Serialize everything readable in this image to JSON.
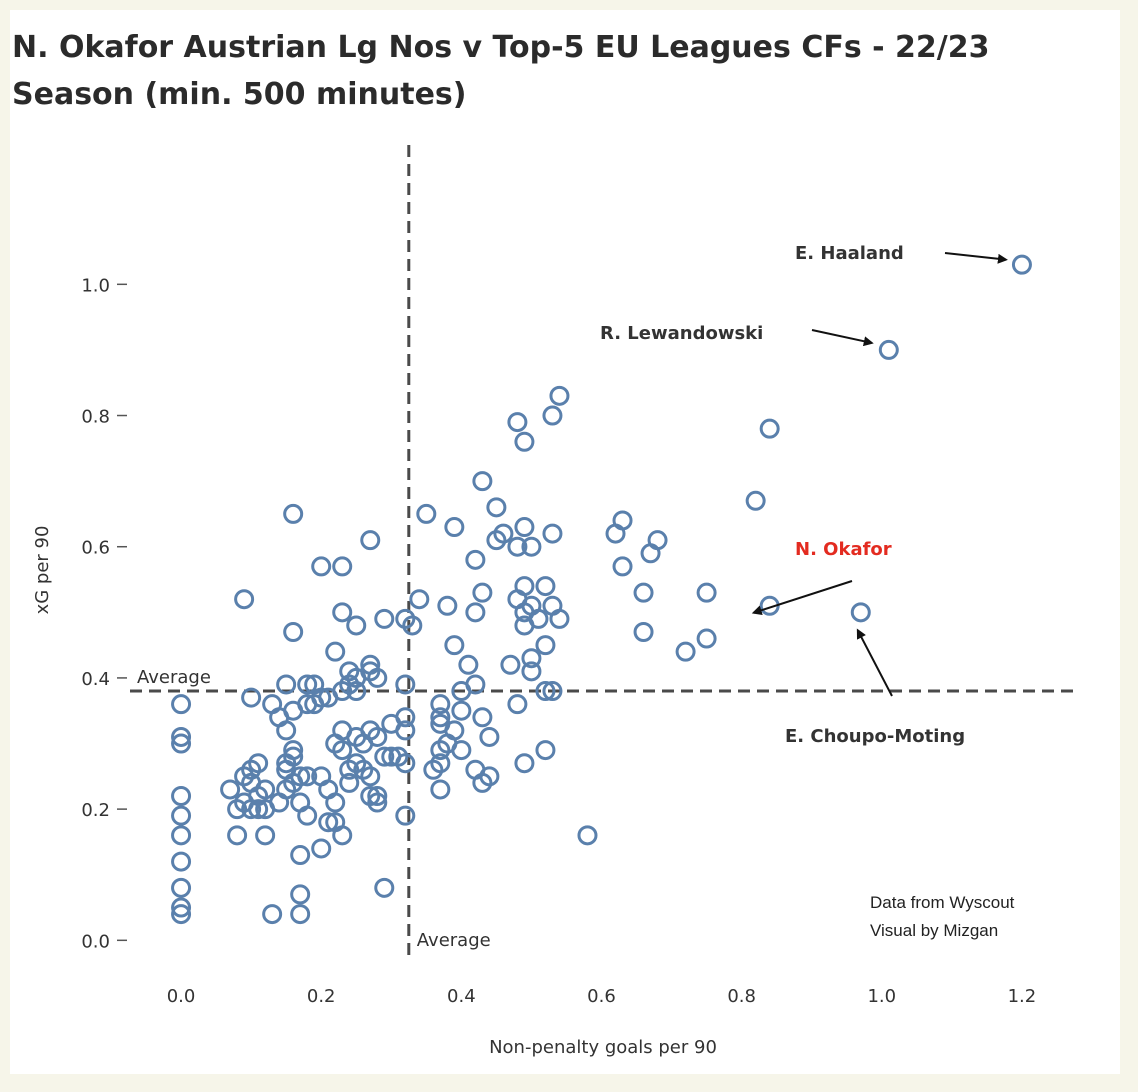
{
  "title": "N. Okafor Austrian Lg Nos v Top-5 EU Leagues CFs - 22/23 Season (min. 500 minutes)",
  "credits": [
    "Data from Wyscout",
    "Visual by Mizgan"
  ],
  "colors": {
    "point": "#5a80ac",
    "highlight": "#e32b20",
    "background": "#f6f5e9",
    "text": "#333333"
  },
  "chart_data": {
    "type": "scatter",
    "title": "N. Okafor Austrian Lg Nos v Top-5 EU Leagues CFs - 22/23 Season (min. 500 minutes)",
    "xlabel": "Non-penalty goals per 90",
    "ylabel": "xG per 90",
    "xlim": [
      -0.08,
      1.28
    ],
    "ylim": [
      -0.03,
      1.22
    ],
    "xticks": [
      "0.0",
      "0.2",
      "0.4",
      "0.6",
      "0.8",
      "1.0",
      "1.2"
    ],
    "yticks": [
      "0.0",
      "0.2",
      "0.4",
      "0.6",
      "0.8",
      "1.0"
    ],
    "grid": false,
    "reference_lines": [
      {
        "axis": "x",
        "value": 0.325,
        "label": "Average"
      },
      {
        "axis": "y",
        "value": 0.38,
        "label": "Average"
      }
    ],
    "annotations": [
      {
        "text": "E. Haaland",
        "x": 1.2,
        "y": 1.03,
        "highlight": false
      },
      {
        "text": "R. Lewandowski",
        "x": 1.01,
        "y": 0.9,
        "highlight": false
      },
      {
        "text": "N. Okafor",
        "x": 0.84,
        "y": 0.51,
        "highlight": true
      },
      {
        "text": "E. Choupo-Moting",
        "x": 0.97,
        "y": 0.5,
        "highlight": false
      }
    ],
    "points": [
      [
        1.2,
        1.03
      ],
      [
        1.01,
        0.9
      ],
      [
        0.84,
        0.78
      ],
      [
        0.82,
        0.67
      ],
      [
        0.84,
        0.51
      ],
      [
        0.97,
        0.5
      ],
      [
        0.75,
        0.53
      ],
      [
        0.75,
        0.46
      ],
      [
        0.72,
        0.44
      ],
      [
        0.68,
        0.61
      ],
      [
        0.67,
        0.59
      ],
      [
        0.66,
        0.53
      ],
      [
        0.66,
        0.47
      ],
      [
        0.63,
        0.64
      ],
      [
        0.62,
        0.62
      ],
      [
        0.63,
        0.57
      ],
      [
        0.58,
        0.16
      ],
      [
        0.54,
        0.83
      ],
      [
        0.53,
        0.8
      ],
      [
        0.48,
        0.79
      ],
      [
        0.49,
        0.76
      ],
      [
        0.43,
        0.7
      ],
      [
        0.45,
        0.66
      ],
      [
        0.53,
        0.62
      ],
      [
        0.46,
        0.62
      ],
      [
        0.45,
        0.61
      ],
      [
        0.48,
        0.6
      ],
      [
        0.5,
        0.6
      ],
      [
        0.49,
        0.63
      ],
      [
        0.42,
        0.58
      ],
      [
        0.49,
        0.54
      ],
      [
        0.52,
        0.54
      ],
      [
        0.43,
        0.53
      ],
      [
        0.48,
        0.52
      ],
      [
        0.53,
        0.51
      ],
      [
        0.5,
        0.51
      ],
      [
        0.54,
        0.49
      ],
      [
        0.49,
        0.5
      ],
      [
        0.51,
        0.49
      ],
      [
        0.42,
        0.5
      ],
      [
        0.49,
        0.48
      ],
      [
        0.52,
        0.45
      ],
      [
        0.5,
        0.43
      ],
      [
        0.47,
        0.42
      ],
      [
        0.5,
        0.41
      ],
      [
        0.52,
        0.38
      ],
      [
        0.53,
        0.38
      ],
      [
        0.42,
        0.39
      ],
      [
        0.4,
        0.38
      ],
      [
        0.48,
        0.36
      ],
      [
        0.39,
        0.45
      ],
      [
        0.41,
        0.42
      ],
      [
        0.38,
        0.51
      ],
      [
        0.35,
        0.65
      ],
      [
        0.39,
        0.63
      ],
      [
        0.34,
        0.52
      ],
      [
        0.37,
        0.36
      ],
      [
        0.37,
        0.34
      ],
      [
        0.37,
        0.33
      ],
      [
        0.39,
        0.32
      ],
      [
        0.4,
        0.35
      ],
      [
        0.38,
        0.3
      ],
      [
        0.37,
        0.29
      ],
      [
        0.4,
        0.29
      ],
      [
        0.37,
        0.27
      ],
      [
        0.43,
        0.34
      ],
      [
        0.44,
        0.31
      ],
      [
        0.43,
        0.24
      ],
      [
        0.44,
        0.25
      ],
      [
        0.42,
        0.26
      ],
      [
        0.36,
        0.26
      ],
      [
        0.37,
        0.23
      ],
      [
        0.49,
        0.27
      ],
      [
        0.52,
        0.29
      ],
      [
        0.33,
        0.48
      ],
      [
        0.32,
        0.49
      ],
      [
        0.29,
        0.49
      ],
      [
        0.27,
        0.61
      ],
      [
        0.23,
        0.57
      ],
      [
        0.2,
        0.57
      ],
      [
        0.16,
        0.65
      ],
      [
        0.09,
        0.52
      ],
      [
        0.16,
        0.47
      ],
      [
        0.23,
        0.5
      ],
      [
        0.25,
        0.48
      ],
      [
        0.22,
        0.44
      ],
      [
        0.24,
        0.41
      ],
      [
        0.25,
        0.4
      ],
      [
        0.27,
        0.42
      ],
      [
        0.27,
        0.41
      ],
      [
        0.28,
        0.4
      ],
      [
        0.24,
        0.39
      ],
      [
        0.23,
        0.38
      ],
      [
        0.25,
        0.38
      ],
      [
        0.32,
        0.39
      ],
      [
        0.2,
        0.37
      ],
      [
        0.21,
        0.37
      ],
      [
        0.18,
        0.39
      ],
      [
        0.19,
        0.39
      ],
      [
        0.15,
        0.39
      ],
      [
        0.18,
        0.36
      ],
      [
        0.19,
        0.36
      ],
      [
        0.16,
        0.35
      ],
      [
        0.14,
        0.34
      ],
      [
        0.13,
        0.36
      ],
      [
        0.15,
        0.32
      ],
      [
        0.16,
        0.29
      ],
      [
        0.1,
        0.37
      ],
      [
        0.0,
        0.36
      ],
      [
        0.0,
        0.31
      ],
      [
        0.0,
        0.3
      ],
      [
        0.32,
        0.34
      ],
      [
        0.32,
        0.32
      ],
      [
        0.3,
        0.33
      ],
      [
        0.27,
        0.32
      ],
      [
        0.28,
        0.31
      ],
      [
        0.26,
        0.3
      ],
      [
        0.25,
        0.31
      ],
      [
        0.23,
        0.32
      ],
      [
        0.22,
        0.3
      ],
      [
        0.23,
        0.29
      ],
      [
        0.3,
        0.28
      ],
      [
        0.31,
        0.28
      ],
      [
        0.32,
        0.27
      ],
      [
        0.29,
        0.28
      ],
      [
        0.25,
        0.27
      ],
      [
        0.24,
        0.26
      ],
      [
        0.26,
        0.26
      ],
      [
        0.27,
        0.25
      ],
      [
        0.24,
        0.24
      ],
      [
        0.27,
        0.22
      ],
      [
        0.28,
        0.22
      ],
      [
        0.28,
        0.21
      ],
      [
        0.2,
        0.25
      ],
      [
        0.21,
        0.23
      ],
      [
        0.18,
        0.25
      ],
      [
        0.17,
        0.25
      ],
      [
        0.16,
        0.24
      ],
      [
        0.15,
        0.23
      ],
      [
        0.15,
        0.26
      ],
      [
        0.15,
        0.27
      ],
      [
        0.16,
        0.28
      ],
      [
        0.14,
        0.21
      ],
      [
        0.17,
        0.21
      ],
      [
        0.22,
        0.21
      ],
      [
        0.18,
        0.19
      ],
      [
        0.21,
        0.18
      ],
      [
        0.22,
        0.18
      ],
      [
        0.23,
        0.16
      ],
      [
        0.2,
        0.14
      ],
      [
        0.17,
        0.13
      ],
      [
        0.17,
        0.07
      ],
      [
        0.17,
        0.04
      ],
      [
        0.13,
        0.04
      ],
      [
        0.29,
        0.08
      ],
      [
        0.32,
        0.19
      ],
      [
        0.12,
        0.16
      ],
      [
        0.08,
        0.16
      ],
      [
        0.1,
        0.26
      ],
      [
        0.11,
        0.27
      ],
      [
        0.09,
        0.25
      ],
      [
        0.1,
        0.24
      ],
      [
        0.11,
        0.22
      ],
      [
        0.12,
        0.23
      ],
      [
        0.07,
        0.23
      ],
      [
        0.08,
        0.2
      ],
      [
        0.1,
        0.2
      ],
      [
        0.11,
        0.2
      ],
      [
        0.12,
        0.2
      ],
      [
        0.09,
        0.21
      ],
      [
        0.0,
        0.22
      ],
      [
        0.0,
        0.19
      ],
      [
        0.0,
        0.16
      ],
      [
        0.0,
        0.12
      ],
      [
        0.0,
        0.08
      ],
      [
        0.0,
        0.05
      ],
      [
        0.0,
        0.04
      ]
    ]
  }
}
